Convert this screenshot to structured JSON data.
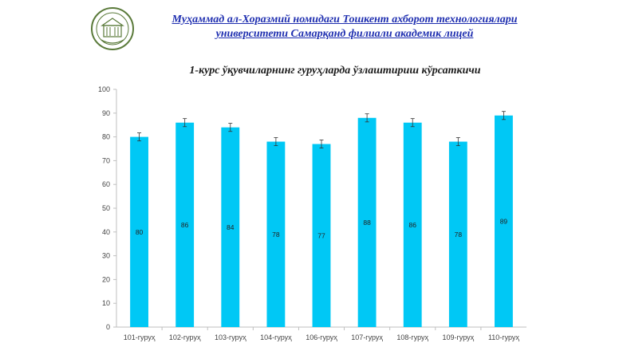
{
  "header": {
    "title_line1": "Муҳаммад ал-Хоразмий номидаги Тошкент ахборот технологиялари",
    "title_line2": "университети Самарқанд филиали академик лицей"
  },
  "colors": {
    "bar": "#00c8f5",
    "header_text": "#1f2fb0",
    "logo": "#5a7a3a"
  },
  "icons": {
    "logo": "university-emblem-icon"
  },
  "chart_data": {
    "type": "bar",
    "title": "1-курс ўқувчиларнинг гуруҳларда ўзлаштириш кўрсаткичи",
    "xlabel": "",
    "ylabel": "",
    "categories": [
      "101-гуруҳ",
      "102-гуруҳ",
      "103-гуруҳ",
      "104-гуруҳ",
      "106-гуруҳ",
      "107-гуруҳ",
      "108-гуруҳ",
      "109-гуруҳ",
      "110-гуруҳ"
    ],
    "values": [
      80,
      86,
      84,
      78,
      77,
      88,
      86,
      78,
      89
    ],
    "error_bars": true,
    "ylim": [
      0,
      100
    ],
    "yticks": [
      0,
      10,
      20,
      30,
      40,
      50,
      60,
      70,
      80,
      90,
      100
    ],
    "grid": false,
    "data_labels": true,
    "legend": "none"
  }
}
